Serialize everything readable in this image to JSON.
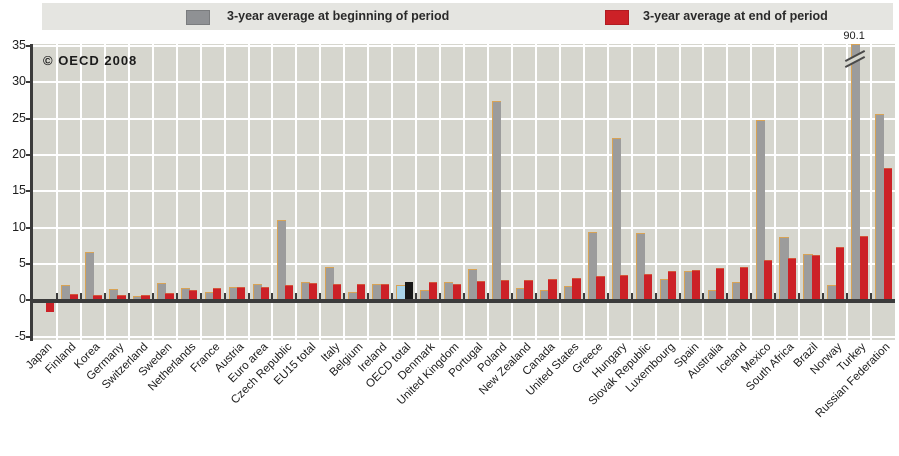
{
  "legend": {
    "begin_label": "3-year average at beginning of period",
    "end_label": "3-year average at end of period"
  },
  "watermark": "© OECD 2008",
  "colors": {
    "begin_bar": "#9c9c9c",
    "end_bar": "#cc2127",
    "highlight_begin_bar": "#a9d3e9",
    "highlight_end_bar": "#161616",
    "plot_background": "#d6d6ce",
    "legend_background": "#e5e5e1",
    "gridline": "#ffffff",
    "axis": "#3b3b3b"
  },
  "chart_data": {
    "type": "bar",
    "title": "",
    "xlabel": "",
    "ylabel": "",
    "ylim": [
      -5,
      35
    ],
    "yticks": [
      -5,
      0,
      5,
      10,
      15,
      20,
      25,
      30,
      35
    ],
    "grid": "white gridlines on gray background, vertical line per category",
    "legend_position": "top",
    "categories": [
      "Japan",
      "Finland",
      "Korea",
      "Germany",
      "Switzerland",
      "Sweden",
      "Netherlands",
      "France",
      "Austria",
      "Euro area",
      "Czech Republic",
      "EU15 total",
      "Italy",
      "Belgium",
      "Ireland",
      "OECD total",
      "Denmark",
      "United Kingdom",
      "Portugal",
      "Poland",
      "New Zealand",
      "Canada",
      "United States",
      "Greece",
      "Hungary",
      "Slovak Republic",
      "Luxembourg",
      "Spain",
      "Australia",
      "Iceland",
      "Mexico",
      "South Africa",
      "Brazil",
      "Norway",
      "Turkey",
      "Russian Federation"
    ],
    "series": [
      {
        "name": "3-year average at beginning of period",
        "values": [
          0.2,
          2.1,
          6.7,
          1.6,
          0.6,
          2.4,
          1.7,
          1.2,
          1.8,
          2.3,
          11.1,
          2.6,
          4.6,
          1.2,
          2.2,
          2.1,
          1.5,
          2.5,
          4.3,
          27.5,
          1.7,
          1.5,
          2.0,
          9.4,
          22.4,
          9.3,
          2.9,
          4.1,
          1.5,
          2.5,
          24.8,
          8.7,
          6.4,
          2.1,
          90.1,
          25.6
        ]
      },
      {
        "name": "3-year average at end of period",
        "values": [
          -1.4,
          0.9,
          0.8,
          0.7,
          0.8,
          1.0,
          1.4,
          1.7,
          1.9,
          1.9,
          2.1,
          2.4,
          2.3,
          2.3,
          2.3,
          2.5,
          2.5,
          2.3,
          2.7,
          2.8,
          2.8,
          3.0,
          3.1,
          3.4,
          3.5,
          3.7,
          4.0,
          4.2,
          4.5,
          4.6,
          5.6,
          5.8,
          6.3,
          7.4,
          8.8,
          18.2
        ]
      }
    ],
    "highlighted_category": "OECD total",
    "broken_bar": {
      "category": "Turkey",
      "series": "3-year average at beginning of period",
      "true_value_label": "90.1"
    }
  }
}
